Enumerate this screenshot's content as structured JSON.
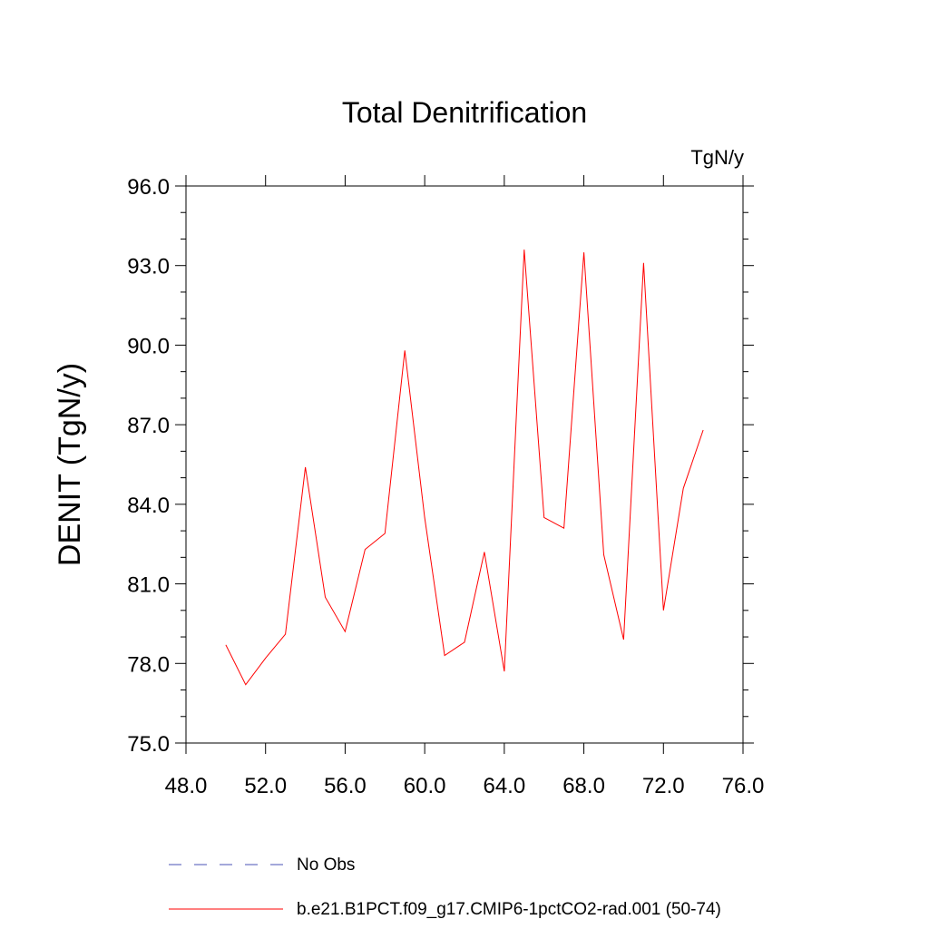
{
  "chart_data": {
    "type": "line",
    "title": "Total Denitrification",
    "units": "TgN/y",
    "ylabel": "DENIT  (TgN/y)",
    "xlabel": "",
    "xlim": [
      48,
      76
    ],
    "ylim": [
      75,
      96
    ],
    "x_ticks": [
      48,
      52,
      56,
      60,
      64,
      68,
      72,
      76
    ],
    "x_tick_labels": [
      "48.0",
      "52.0",
      "56.0",
      "60.0",
      "64.0",
      "68.0",
      "72.0",
      "76.0"
    ],
    "y_ticks": [
      75,
      78,
      81,
      84,
      87,
      90,
      93,
      96
    ],
    "y_tick_labels": [
      "75.0",
      "78.0",
      "81.0",
      "84.0",
      "87.0",
      "90.0",
      "93.0",
      "96.0"
    ],
    "grid": false,
    "legend_position": "bottom",
    "series": [
      {
        "name": "No Obs",
        "color": "#4a52b5",
        "style": "dashed",
        "x": [],
        "y": []
      },
      {
        "name": "b.e21.B1PCT.f09_g17.CMIP6-1pctCO2-rad.001 (50-74)",
        "color": "#ff0000",
        "style": "solid",
        "x": [
          50,
          51,
          52,
          53,
          54,
          55,
          56,
          57,
          58,
          59,
          60,
          61,
          62,
          63,
          64,
          65,
          66,
          67,
          68,
          69,
          70,
          71,
          72,
          73,
          74
        ],
        "y": [
          78.7,
          77.2,
          78.2,
          79.1,
          85.4,
          80.5,
          79.2,
          82.3,
          82.9,
          89.8,
          83.5,
          78.3,
          78.8,
          82.2,
          77.7,
          93.6,
          83.5,
          83.1,
          93.5,
          82.1,
          78.9,
          93.1,
          80.0,
          84.6,
          86.8
        ]
      }
    ]
  }
}
